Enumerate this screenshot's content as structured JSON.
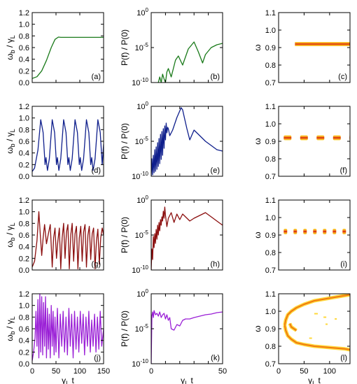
{
  "chart_data": [
    {
      "panel": "(a)",
      "type": "line",
      "color": "#1a7a1a",
      "xlim": [
        0,
        150
      ],
      "ylim": [
        0,
        1.2
      ],
      "yscale": "linear",
      "xticks": [
        0,
        50,
        100,
        150
      ],
      "yticks": [
        0,
        0.2,
        0.4,
        0.6,
        0.8,
        1.0,
        1.2
      ],
      "ytick_labels": [
        "0.0",
        "0.2",
        "0.4",
        "0.6",
        "0.8",
        "1.0",
        "1.2"
      ],
      "ylabel": "ωb / γL",
      "xlabel": "",
      "x": [
        0,
        10,
        20,
        30,
        40,
        48,
        55,
        60,
        70,
        100,
        150
      ],
      "y": [
        0.07,
        0.1,
        0.2,
        0.38,
        0.6,
        0.74,
        0.78,
        0.775,
        0.775,
        0.775,
        0.775
      ]
    },
    {
      "panel": "(b)",
      "type": "line",
      "color": "#1a7a1a",
      "xlim": [
        0,
        50
      ],
      "ylim_exp": [
        -10,
        0
      ],
      "yscale": "log",
      "xticks": [
        0,
        10,
        20,
        30,
        40,
        50
      ],
      "yticks_exp": [
        -10,
        -5,
        0
      ],
      "ytick_labels": [
        "10",
        "10",
        "10"
      ],
      "ytick_sup": [
        "-10",
        "-5",
        "0"
      ],
      "ylabel": "P(f) / P(0)",
      "xlabel": "",
      "x": [
        5,
        6,
        7,
        8,
        9,
        10,
        11,
        12,
        14,
        17,
        19,
        22,
        26,
        30,
        33,
        36,
        38,
        42,
        46,
        50
      ],
      "y_exp": [
        -10,
        -9.2,
        -10,
        -8.8,
        -9.5,
        -10,
        -8.5,
        -8.0,
        -9.2,
        -6.8,
        -6.2,
        -7.5,
        -5.2,
        -4.2,
        -5.6,
        -7.2,
        -6.0,
        -5.0,
        -4.6,
        -4.4
      ]
    },
    {
      "panel": "(c)",
      "type": "heatmap",
      "xlim": [
        0,
        140
      ],
      "ylim": [
        0.7,
        1.1
      ],
      "xticks": [
        0,
        50,
        100
      ],
      "yticks": [
        0.7,
        0.8,
        0.9,
        1.0,
        1.1
      ],
      "ytick_labels": [
        "0.7",
        "0.8",
        "0.9",
        "1.0",
        "1.1"
      ],
      "ylabel": "ω",
      "xlabel": "",
      "bands": [
        {
          "x_start": 32,
          "x_end": 140,
          "center": 0.92,
          "half_width": 0.012,
          "style": "solid"
        }
      ]
    },
    {
      "panel": "(d)",
      "type": "line",
      "color": "#0f1f8c",
      "xlim": [
        0,
        150
      ],
      "ylim": [
        0,
        1.2
      ],
      "yscale": "linear",
      "xticks": [
        0,
        50,
        100,
        150
      ],
      "yticks": [
        0,
        0.2,
        0.4,
        0.6,
        0.8,
        1.0,
        1.2
      ],
      "ytick_labels": [
        "0.0",
        "0.2",
        "0.4",
        "0.6",
        "0.8",
        "1.0",
        "1.2"
      ],
      "ylabel": "ωb / γL",
      "xlabel": "",
      "x": [
        0,
        5,
        12,
        18,
        23,
        27,
        29,
        32,
        36,
        42,
        47,
        51,
        53,
        56,
        60,
        66,
        71,
        75,
        77,
        80,
        84,
        90,
        95,
        99,
        101,
        104,
        108,
        114,
        119,
        123,
        125,
        128,
        132,
        138,
        143,
        147,
        150
      ],
      "y": [
        0.08,
        0.14,
        0.45,
        0.97,
        0.75,
        0.2,
        0.32,
        0.1,
        0.3,
        0.97,
        0.75,
        0.2,
        0.32,
        0.1,
        0.3,
        0.97,
        0.75,
        0.2,
        0.32,
        0.1,
        0.3,
        0.97,
        0.75,
        0.2,
        0.32,
        0.1,
        0.3,
        0.97,
        0.75,
        0.2,
        0.32,
        0.1,
        0.3,
        0.97,
        0.75,
        0.2,
        0.55
      ]
    },
    {
      "panel": "(e)",
      "type": "line",
      "color": "#0f1f8c",
      "xlim": [
        0,
        50
      ],
      "ylim_exp": [
        -10,
        0
      ],
      "yscale": "log",
      "xticks": [
        0,
        10,
        20,
        30,
        40,
        50
      ],
      "yticks_exp": [
        -10,
        -5,
        0
      ],
      "ytick_labels": [
        "10",
        "10",
        "10"
      ],
      "ytick_sup": [
        "-10",
        "-5",
        "0"
      ],
      "ylabel": "P(f) / P(0)",
      "xlabel": "",
      "x": [
        0,
        0.5,
        1,
        1.5,
        2,
        2.5,
        3,
        3.5,
        4,
        4.5,
        5,
        5.5,
        6,
        6.5,
        7,
        7.5,
        8,
        8.5,
        9,
        9.5,
        10,
        10.5,
        11,
        11.5,
        12,
        13,
        15,
        18,
        21,
        22,
        23,
        25,
        27,
        30,
        34,
        38,
        42,
        46,
        50
      ],
      "y_exp": [
        -10,
        -7.5,
        -9.8,
        -7,
        -9.5,
        -6.2,
        -9.3,
        -5.8,
        -9,
        -5.2,
        -8.6,
        -4.6,
        -8.2,
        -4,
        -7.6,
        -3.6,
        -7,
        -3.2,
        -6,
        -2.8,
        -4.8,
        -2.4,
        -3.8,
        -3.0,
        -3.2,
        -4.2,
        -3.4,
        -1.6,
        -0.2,
        -0.5,
        -1.4,
        -3.2,
        -4.8,
        -3.4,
        -4.2,
        -5.0,
        -5.6,
        -6.2,
        -6.4
      ]
    },
    {
      "panel": "(f)",
      "type": "heatmap",
      "xlim": [
        0,
        140
      ],
      "ylim": [
        0.7,
        1.1
      ],
      "xticks": [
        0,
        50,
        100
      ],
      "yticks": [
        0.7,
        0.8,
        0.9,
        1.0,
        1.1
      ],
      "ytick_labels": [
        "0.7",
        "0.8",
        "0.9",
        "1.0",
        "1.1"
      ],
      "ylabel": "ω",
      "xlabel": "",
      "bands": [
        {
          "x_start": 10,
          "x_end": 140,
          "center": 0.92,
          "half_width": 0.014,
          "style": "dashed",
          "dash": 11,
          "gap": 12.5
        }
      ]
    },
    {
      "panel": "(g)",
      "type": "line",
      "color": "#8b0e0e",
      "xlim": [
        0,
        150
      ],
      "ylim": [
        0,
        1.2
      ],
      "yscale": "linear",
      "xticks": [
        0,
        50,
        100,
        150
      ],
      "yticks": [
        0,
        0.2,
        0.4,
        0.6,
        0.8,
        1.0,
        1.2
      ],
      "ytick_labels": [
        "0.0",
        "0.2",
        "0.4",
        "0.6",
        "0.8",
        "1.0",
        "1.2"
      ],
      "ylabel": "ωb / γL",
      "xlabel": "",
      "x": [
        0,
        5,
        10,
        14,
        17,
        20,
        23,
        26,
        30,
        34,
        38,
        42,
        45,
        48,
        51,
        54,
        57,
        60,
        63,
        66,
        69,
        72,
        75,
        78,
        81,
        84,
        87,
        90,
        93,
        96,
        99,
        102,
        105,
        108,
        111,
        114,
        117,
        120,
        123,
        126,
        129,
        132,
        135,
        138,
        141,
        144,
        147,
        150
      ],
      "y": [
        0.05,
        0.15,
        0.5,
        1.0,
        0.6,
        0.25,
        0.55,
        0.78,
        0.45,
        0.62,
        0.78,
        0.05,
        0.55,
        0.72,
        0.2,
        0.5,
        0.72,
        0.02,
        0.55,
        0.8,
        0.2,
        0.65,
        0.78,
        0.02,
        0.6,
        0.8,
        0.15,
        0.62,
        0.75,
        0.02,
        0.55,
        0.75,
        0.15,
        0.65,
        0.78,
        0.05,
        0.6,
        0.75,
        0.18,
        0.62,
        0.72,
        0.02,
        0.5,
        0.7,
        0.1,
        0.55,
        0.72,
        0.6
      ]
    },
    {
      "panel": "(h)",
      "type": "line",
      "color": "#8b0e0e",
      "xlim": [
        0,
        50
      ],
      "ylim_exp": [
        -10,
        0
      ],
      "yscale": "log",
      "xticks": [
        0,
        10,
        20,
        30,
        40,
        50
      ],
      "yticks_exp": [
        -10,
        -5,
        0
      ],
      "ytick_labels": [
        "10",
        "10",
        "10"
      ],
      "ytick_sup": [
        "-10",
        "-5",
        "0"
      ],
      "ylabel": "P(f) / P(0)",
      "xlabel": "",
      "x": [
        0,
        0.5,
        1,
        1.5,
        2,
        2.5,
        3,
        3.5,
        4,
        4.5,
        5,
        5.5,
        6,
        6.5,
        7,
        7.5,
        8,
        8.5,
        9,
        9.5,
        10,
        11,
        12,
        14,
        16,
        18,
        20,
        22,
        24,
        27,
        30,
        34,
        38,
        42,
        46,
        50
      ],
      "y_exp": [
        -10,
        -7,
        -8.5,
        -5.2,
        -6.8,
        -4.8,
        -6.2,
        -4.2,
        -5.6,
        -3.6,
        -5.0,
        -3.2,
        -4.4,
        -2.8,
        -3.6,
        -2.4,
        -3.0,
        -1.6,
        -2.6,
        -1.0,
        -2.2,
        -3.8,
        -2.6,
        -1.8,
        -3.2,
        -2.0,
        -2.8,
        -2.0,
        -2.4,
        -3.0,
        -2.6,
        -2.2,
        -1.8,
        -2.4,
        -3.0,
        -3.6
      ]
    },
    {
      "panel": "(i)",
      "type": "heatmap",
      "xlim": [
        0,
        140
      ],
      "ylim": [
        0.7,
        1.1
      ],
      "xticks": [
        0,
        50,
        100
      ],
      "yticks": [
        0.7,
        0.8,
        0.9,
        1.0,
        1.1
      ],
      "ytick_labels": [
        "0.7",
        "0.8",
        "0.9",
        "1.0",
        "1.1"
      ],
      "ylabel": "ω",
      "xlabel": "",
      "bands": [
        {
          "x_start": 10,
          "x_end": 140,
          "center": 0.92,
          "half_width": 0.016,
          "style": "dashed",
          "dash": 5,
          "gap": 9
        }
      ]
    },
    {
      "panel": "(j)",
      "type": "line",
      "color": "#9a1fd6",
      "xlim": [
        0,
        150
      ],
      "ylim": [
        0,
        1.2
      ],
      "yscale": "linear",
      "xticks": [
        0,
        50,
        100,
        150
      ],
      "xtick_labels": [
        "0",
        "50",
        "100",
        "150"
      ],
      "yticks": [
        0,
        0.2,
        0.4,
        0.6,
        0.8,
        1.0,
        1.2
      ],
      "ytick_labels": [
        "0.0",
        "0.2",
        "0.4",
        "0.6",
        "0.8",
        "1.0",
        "1.2"
      ],
      "ylabel": "ωb / γL",
      "xlabel": "γL t",
      "x": [
        0,
        3,
        6,
        8,
        10,
        12,
        14,
        16,
        18,
        20,
        22,
        24,
        26,
        28,
        30,
        32,
        34,
        36,
        38,
        40,
        42,
        44,
        46,
        48,
        50,
        53,
        56,
        59,
        62,
        65,
        68,
        71,
        74,
        77,
        80,
        83,
        86,
        89,
        92,
        95,
        98,
        101,
        104,
        107,
        110,
        113,
        116,
        119,
        122,
        125,
        128,
        131,
        134,
        137,
        140,
        143,
        146,
        150
      ],
      "y": [
        0.05,
        0.2,
        0.45,
        0.9,
        0.3,
        1.1,
        0.1,
        1.2,
        0.2,
        1.15,
        0.15,
        1.05,
        0.3,
        1.15,
        0.1,
        0.95,
        0.25,
        0.85,
        0.1,
        1.0,
        0.3,
        0.9,
        0.15,
        0.8,
        0.2,
        0.95,
        0.1,
        0.85,
        0.3,
        0.9,
        0.2,
        0.8,
        0.15,
        0.95,
        0.3,
        0.85,
        0.1,
        0.9,
        0.25,
        0.8,
        0.2,
        0.9,
        0.35,
        0.85,
        0.15,
        0.8,
        0.3,
        0.9,
        0.2,
        0.75,
        0.3,
        0.85,
        0.2,
        0.8,
        0.25,
        0.9,
        0.3,
        0.6
      ]
    },
    {
      "panel": "(k)",
      "type": "line",
      "color": "#9a1fd6",
      "xlim": [
        0,
        50
      ],
      "ylim_exp": [
        -10,
        0
      ],
      "yscale": "log",
      "xticks": [
        0,
        10,
        20,
        30,
        40,
        50
      ],
      "xtick_labels": [
        "0",
        "",
        "",
        "",
        "",
        "50"
      ],
      "yticks_exp": [
        -10,
        -5,
        0
      ],
      "ytick_labels": [
        "10",
        "10",
        "10"
      ],
      "ytick_sup": [
        "-10",
        "-5",
        "0"
      ],
      "ylabel": "P(f) / P(0)",
      "xlabel": "γL t",
      "x": [
        0,
        0.5,
        1,
        1.5,
        2,
        3,
        4,
        5,
        6,
        7,
        8,
        9,
        10,
        11,
        12,
        13,
        14,
        16,
        18,
        20,
        22,
        24,
        27,
        30,
        34,
        38,
        42,
        46,
        50
      ],
      "y_exp": [
        -10,
        -3.2,
        -2.6,
        -3.4,
        -2.4,
        -3.0,
        -2.8,
        -3.2,
        -2.6,
        -3.4,
        -3.0,
        -2.8,
        -3.6,
        -3.0,
        -3.8,
        -3.4,
        -5.0,
        -5.2,
        -4.4,
        -4.6,
        -3.8,
        -3.6,
        -3.6,
        -3.4,
        -3.2,
        -3.0,
        -2.9,
        -2.7,
        -2.6
      ]
    },
    {
      "panel": "(l)",
      "type": "heatmap",
      "xlim": [
        0,
        140
      ],
      "ylim": [
        0.7,
        1.1
      ],
      "xticks": [
        0,
        50,
        100
      ],
      "xtick_labels": [
        "0",
        "50",
        "100"
      ],
      "yticks": [
        0.7,
        0.8,
        0.9,
        1.0,
        1.1
      ],
      "ytick_labels": [
        "0.7",
        "0.8",
        "0.9",
        "1.0",
        "1.1"
      ],
      "ylabel": "ω",
      "xlabel": "γL t",
      "curves": [
        {
          "x": [
            12,
            14,
            18,
            25,
            35,
            50,
            70,
            90,
            110,
            130,
            140
          ],
          "y": [
            0.92,
            0.95,
            0.98,
            1.0,
            1.02,
            1.04,
            1.06,
            1.07,
            1.08,
            1.09,
            1.095
          ]
        },
        {
          "x": [
            12,
            14,
            18,
            25,
            35,
            50,
            70,
            90,
            110,
            130,
            140
          ],
          "y": [
            0.92,
            0.89,
            0.86,
            0.84,
            0.82,
            0.81,
            0.8,
            0.795,
            0.79,
            0.785,
            0.78
          ]
        },
        {
          "x": [
            22,
            25,
            30,
            35
          ],
          "y": [
            0.93,
            0.91,
            0.9,
            0.89
          ]
        }
      ],
      "specks": [
        {
          "x": 70,
          "y": 0.99,
          "w": 5,
          "h": 0.008
        },
        {
          "x": 88,
          "y": 0.97,
          "w": 4,
          "h": 0.008
        },
        {
          "x": 92,
          "y": 0.93,
          "w": 3,
          "h": 0.008
        },
        {
          "x": 60,
          "y": 0.85,
          "w": 4,
          "h": 0.006
        },
        {
          "x": 110,
          "y": 0.96,
          "w": 3,
          "h": 0.006
        }
      ]
    }
  ]
}
